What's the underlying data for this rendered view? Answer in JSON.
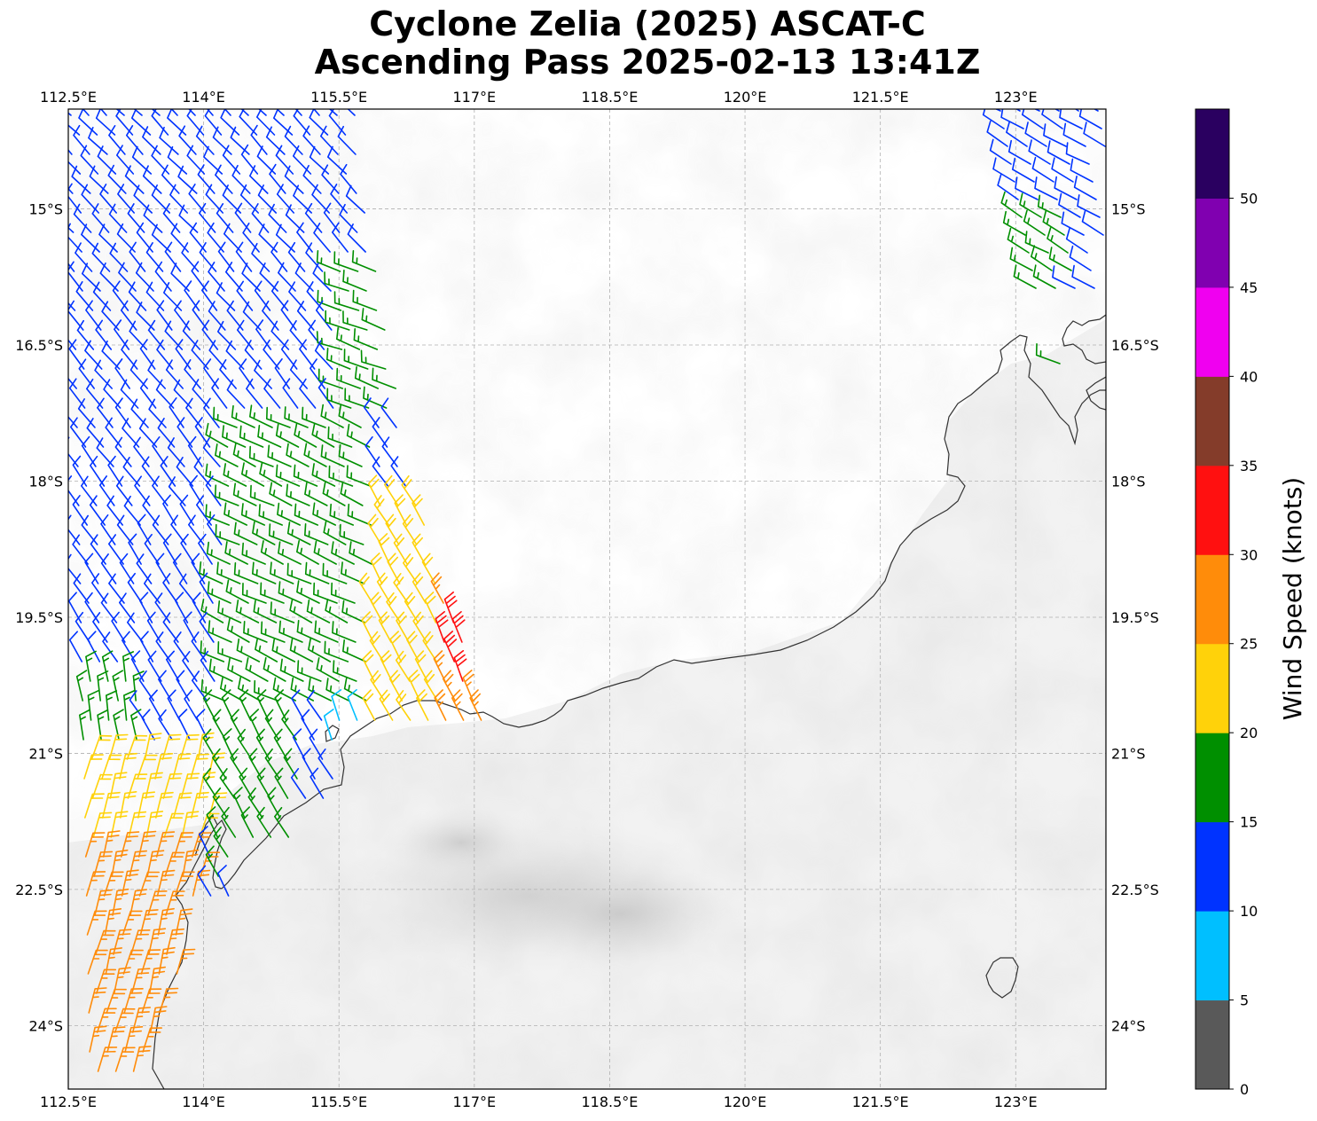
{
  "title_line1": "Cyclone Zelia (2025) ASCAT-C",
  "title_line2": "Ascending Pass 2025-02-13 13:41Z",
  "map": {
    "lon_range": [
      112.5,
      124.0
    ],
    "lat_range": [
      -24.7,
      -13.9
    ],
    "lon_ticks": [
      "112.5°E",
      "114°E",
      "115.5°E",
      "117°E",
      "118.5°E",
      "120°E",
      "121.5°E",
      "123°E"
    ],
    "lat_ticks": [
      "15°S",
      "16.5°S",
      "18°S",
      "19.5°S",
      "21°S",
      "22.5°S",
      "24°S"
    ],
    "gridlines": "dashed",
    "coastline": "Western Australia (Pilbara / Kimberley coast)",
    "background": "grayscale infrared satellite imagery",
    "wind_barbs": "ASCAT-C scatterometer wind barbs colored by speed"
  },
  "colorbar": {
    "label": "Wind Speed (knots)",
    "ticks": [
      "0",
      "5",
      "10",
      "15",
      "20",
      "25",
      "30",
      "35",
      "40",
      "45",
      "50"
    ],
    "bins": [
      {
        "range": "0-5",
        "color": "#595959"
      },
      {
        "range": "5-10",
        "color": "#00bfff"
      },
      {
        "range": "10-15",
        "color": "#0033ff"
      },
      {
        "range": "15-20",
        "color": "#008f00"
      },
      {
        "range": "20-25",
        "color": "#ffd20a"
      },
      {
        "range": "25-30",
        "color": "#ff8c0a"
      },
      {
        "range": "30-35",
        "color": "#ff1010"
      },
      {
        "range": "35-40",
        "color": "#843c2a"
      },
      {
        "range": "40-45",
        "color": "#f000f0"
      },
      {
        "range": "45-50",
        "color": "#8000b0"
      },
      {
        "range": "50+",
        "color": "#2a0060"
      }
    ]
  },
  "barb_fields": [
    {
      "zone": "north-west swath",
      "speed_bin": "10-15",
      "color": "#0033ff"
    },
    {
      "zone": "inner swath band",
      "speed_bin": "15-20",
      "color": "#008f00"
    },
    {
      "zone": "eye wall near 117°E",
      "speed_bin": "25-30",
      "color": "#ff8c0a"
    },
    {
      "zone": "eye wall core",
      "speed_bin": "30-35",
      "color": "#ff1010"
    },
    {
      "zone": "south-west swath",
      "speed_bin": "20-25",
      "color": "#ffd20a"
    },
    {
      "zone": "north-east swath",
      "speed_bin": "10-15",
      "color": "#0033ff"
    },
    {
      "zone": "near-coast calm",
      "speed_bin": "5-10",
      "color": "#00bfff"
    }
  ]
}
